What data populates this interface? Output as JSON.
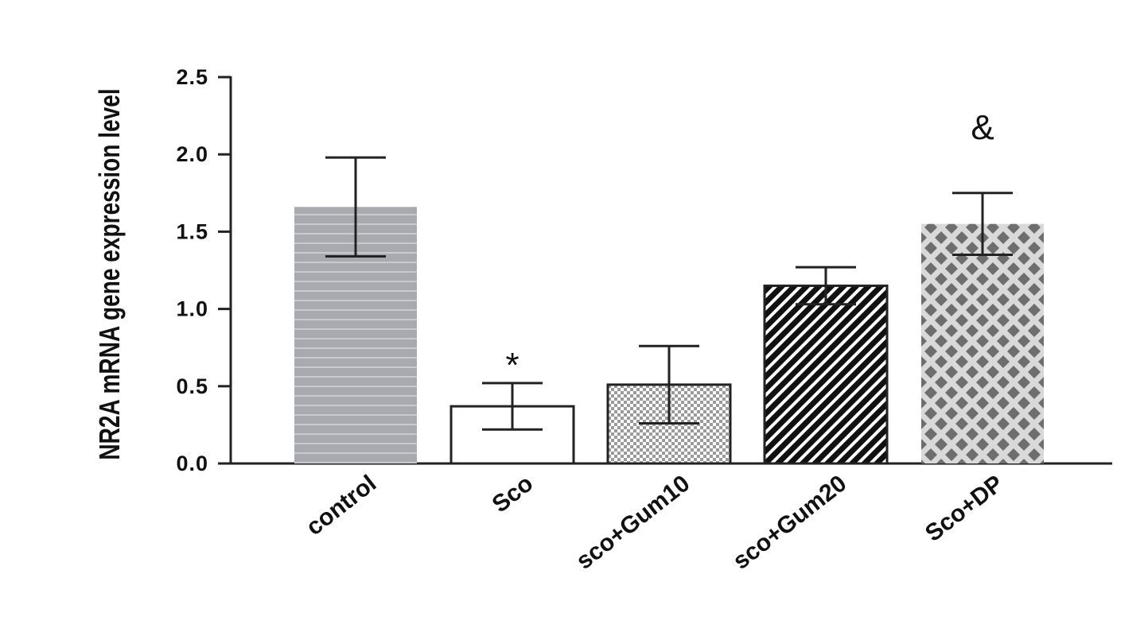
{
  "chart_data": {
    "type": "bar",
    "title": "",
    "xlabel": "",
    "ylabel": "NR2A mRNA gene expression level",
    "ylim": [
      0,
      2.5
    ],
    "yticks": [
      "0.0",
      "0.5",
      "1.0",
      "1.5",
      "2.0",
      "2.5"
    ],
    "categories": [
      "control",
      "Sco",
      "sco+Gum10",
      "sco+Gum20",
      "Sco+DP"
    ],
    "values": [
      1.66,
      0.37,
      0.51,
      1.15,
      1.55
    ],
    "errors": [
      0.32,
      0.15,
      0.25,
      0.12,
      0.2
    ],
    "annotations": [
      "",
      "*",
      "",
      "",
      "&"
    ],
    "fill_patterns": [
      "horizontal-lines",
      "none",
      "fine-checker",
      "diagonal-stripes",
      "diamond-dots"
    ],
    "colors": {
      "control_fill": "#a9a9b0",
      "control_lines": "#c9c9cf",
      "sco_fill": "#ffffff",
      "gum10_fill": "#d0d0d0",
      "gum20_fill": "#111111",
      "dp_fill": "#d9d9d9",
      "dp_diamond": "#6e6e6e",
      "axis": "#222222"
    },
    "grid": false,
    "legend": "none"
  }
}
